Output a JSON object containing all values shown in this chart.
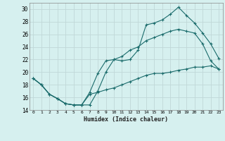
{
  "xlabel": "Humidex (Indice chaleur)",
  "xlim": [
    -0.5,
    23.5
  ],
  "ylim": [
    14,
    31
  ],
  "yticks": [
    14,
    16,
    18,
    20,
    22,
    24,
    26,
    28,
    30
  ],
  "xticks": [
    0,
    1,
    2,
    3,
    4,
    5,
    6,
    7,
    8,
    9,
    10,
    11,
    12,
    13,
    14,
    15,
    16,
    17,
    18,
    19,
    20,
    21,
    22,
    23
  ],
  "bg_color": "#d6f0ef",
  "grid_color": "#c0d8d8",
  "line_color": "#1a6b6b",
  "line1_x": [
    0,
    1,
    2,
    3,
    4,
    5,
    6,
    7,
    8,
    9,
    10,
    11,
    12,
    13,
    14,
    15,
    16,
    17,
    18,
    19,
    20,
    21,
    22,
    23
  ],
  "line1_y": [
    19.0,
    18.0,
    16.5,
    15.8,
    15.0,
    14.8,
    14.8,
    14.8,
    17.0,
    20.0,
    22.0,
    21.8,
    22.0,
    23.5,
    27.5,
    27.8,
    28.3,
    29.2,
    30.3,
    29.0,
    27.8,
    26.2,
    24.5,
    22.2
  ],
  "line2_x": [
    0,
    1,
    2,
    3,
    4,
    5,
    6,
    7,
    8,
    9,
    10,
    11,
    12,
    13,
    14,
    15,
    16,
    17,
    18,
    19,
    20,
    21,
    22,
    23
  ],
  "line2_y": [
    19.0,
    18.0,
    16.5,
    15.8,
    15.0,
    14.8,
    14.8,
    16.8,
    19.8,
    21.8,
    22.0,
    22.5,
    23.5,
    24.0,
    25.0,
    25.5,
    26.0,
    26.5,
    26.8,
    26.5,
    26.2,
    24.5,
    21.8,
    20.5
  ],
  "line3_x": [
    0,
    1,
    2,
    3,
    4,
    5,
    6,
    7,
    8,
    9,
    10,
    11,
    12,
    13,
    14,
    15,
    16,
    17,
    18,
    19,
    20,
    21,
    22,
    23
  ],
  "line3_y": [
    19.0,
    18.0,
    16.5,
    15.8,
    15.0,
    14.8,
    14.8,
    16.5,
    16.8,
    17.2,
    17.5,
    18.0,
    18.5,
    19.0,
    19.5,
    19.8,
    19.8,
    20.0,
    20.3,
    20.5,
    20.8,
    20.8,
    21.0,
    20.5
  ]
}
